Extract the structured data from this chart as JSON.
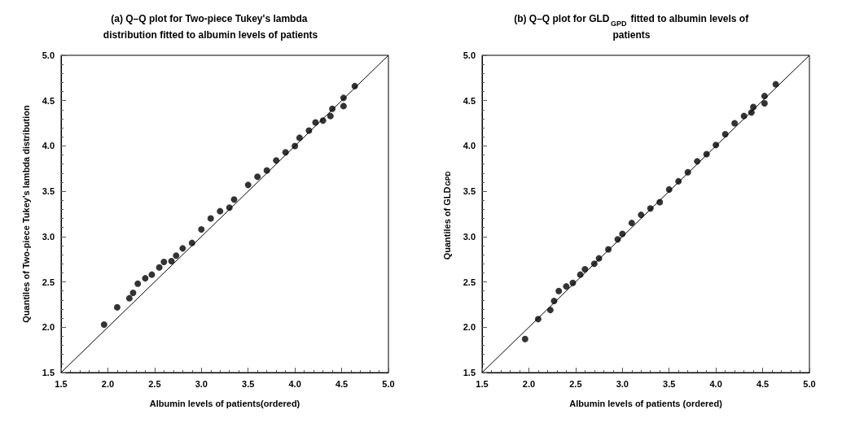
{
  "chart_data": [
    {
      "type": "scatter",
      "title": "(a) Q–Q plot for Two-piece Tukey's lambda distribution fitted to albumin levels of patients",
      "xlabel": "Albumin levels of patients(ordered)",
      "ylabel": "Quantiles of Two-piece Tukey's lambda distribution",
      "xlim": [
        1.5,
        5
      ],
      "ylim": [
        1.5,
        5
      ],
      "xticks": [
        1.5,
        {
          "value": 2,
          "label": "2.0"
        },
        2.5,
        {
          "value": 3,
          "label": "3.0"
        },
        3.5,
        {
          "value": 4,
          "label": "4.0"
        },
        4.5,
        {
          "value": 5,
          "label": "5.0"
        }
      ],
      "yticks": [
        1.5,
        {
          "value": 2,
          "label": "2.0"
        },
        2.5,
        {
          "value": 3,
          "label": "3.0"
        },
        3.5,
        {
          "value": 4,
          "label": "4.0"
        },
        4.5,
        {
          "value": 5,
          "label": "5.0"
        }
      ],
      "grid": false,
      "marker": "circle",
      "series": [
        {
          "type": "line",
          "color": "#000000",
          "marker": "none",
          "x": [
            1.5,
            5
          ],
          "values": [
            1.5,
            5
          ]
        },
        {
          "type": "scatter",
          "color": "#000000",
          "x": [
            1.96,
            2.1,
            2.23,
            2.27,
            2.32,
            2.4,
            2.47,
            2.55,
            2.6,
            2.68,
            2.73,
            2.8,
            2.9,
            3.0,
            3.1,
            3.2,
            3.3,
            3.35,
            3.5,
            3.6,
            3.7,
            3.8,
            3.9,
            4.0,
            4.05,
            4.15,
            4.22,
            4.3,
            4.38,
            4.4,
            4.52,
            4.52,
            4.64
          ],
          "values": [
            2.03,
            2.22,
            2.32,
            2.38,
            2.48,
            2.54,
            2.58,
            2.66,
            2.72,
            2.73,
            2.79,
            2.87,
            2.93,
            3.08,
            3.2,
            3.28,
            3.32,
            3.41,
            3.57,
            3.66,
            3.73,
            3.84,
            3.93,
            4.0,
            4.09,
            4.17,
            4.26,
            4.28,
            4.33,
            4.41,
            4.44,
            4.53,
            4.66
          ]
        }
      ]
    },
    {
      "type": "scatter",
      "title": "(b) Q–Q plot for GLD$_{GPD}$ fitted to albumin levels of patients",
      "xlabel": "Albumin levels of patients (ordered)",
      "ylabel": "Quantiles of GLD$_{GPD}$",
      "xlim": [
        1.5,
        5
      ],
      "ylim": [
        1.5,
        5
      ],
      "xticks": [
        1.5,
        {
          "value": 2,
          "label": "2.0"
        },
        2.5,
        {
          "value": 3,
          "label": "3.0"
        },
        3.5,
        {
          "value": 4,
          "label": "4.0"
        },
        4.5,
        {
          "value": 5,
          "label": "5.0"
        }
      ],
      "yticks": [
        1.5,
        {
          "value": 2,
          "label": "2.0"
        },
        2.5,
        {
          "value": 3,
          "label": "3.0"
        },
        3.5,
        {
          "value": 4,
          "label": "4.0"
        },
        4.5,
        {
          "value": 5,
          "label": "5.0"
        }
      ],
      "grid": false,
      "marker": "circle",
      "series": [
        {
          "type": "line",
          "color": "#000000",
          "marker": "none",
          "x": [
            1.5,
            5
          ],
          "values": [
            1.5,
            5
          ]
        },
        {
          "type": "scatter",
          "color": "#000000",
          "x": [
            1.96,
            2.1,
            2.23,
            2.27,
            2.32,
            2.4,
            2.47,
            2.55,
            2.6,
            2.7,
            2.75,
            2.85,
            2.95,
            3.0,
            3.1,
            3.2,
            3.3,
            3.4,
            3.5,
            3.6,
            3.7,
            3.8,
            3.9,
            4.0,
            4.1,
            4.2,
            4.3,
            4.38,
            4.4,
            4.52,
            4.52,
            4.64
          ],
          "values": [
            1.87,
            2.09,
            2.19,
            2.29,
            2.4,
            2.45,
            2.49,
            2.58,
            2.64,
            2.7,
            2.76,
            2.86,
            2.97,
            3.03,
            3.15,
            3.24,
            3.31,
            3.38,
            3.52,
            3.61,
            3.71,
            3.83,
            3.91,
            4.01,
            4.13,
            4.25,
            4.33,
            4.37,
            4.43,
            4.47,
            4.55,
            4.68
          ]
        }
      ]
    }
  ]
}
